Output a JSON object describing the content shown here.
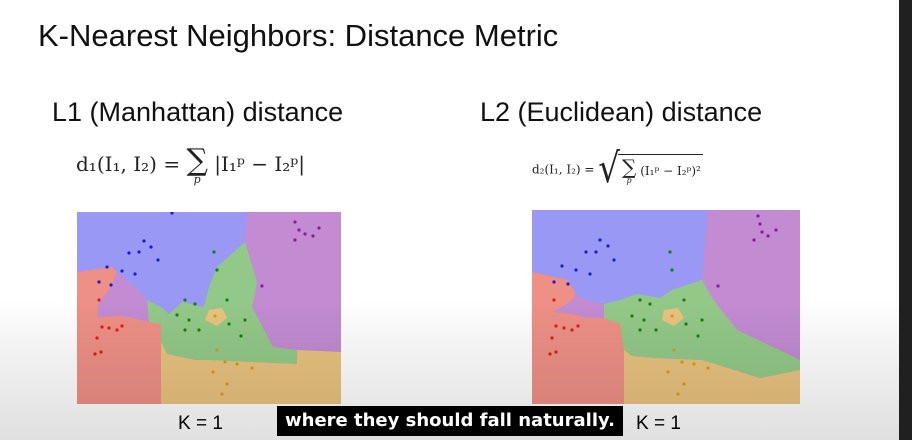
{
  "slide": {
    "title": "K-Nearest Neighbors: Distance Metric",
    "left": {
      "heading": "L1 (Manhattan) distance",
      "formula": {
        "lhs": "d₁(I₁, I₂) =",
        "sum_sub": "p",
        "body": "|I₁ᵖ − I₂ᵖ|"
      },
      "k_label": "K = 1"
    },
    "right": {
      "heading": "L2 (Euclidean) distance",
      "formula": {
        "lhs": "d₂(I₁, I₂) =",
        "sum_sub": "p",
        "body": "(I₁ᵖ − I₂ᵖ)²"
      },
      "k_label": "K = 1"
    }
  },
  "subtitle": "where they should fall naturally.",
  "colors": {
    "blue": "#9999f5",
    "purple": "#c28bd2",
    "red": "#ee9086",
    "green": "#93c988",
    "yellow": "#e9c37f",
    "dot_blue": "#1d1dc4",
    "dot_purple": "#8a1e9a",
    "dot_red": "#dc1c1c",
    "dot_green": "#138013",
    "dot_yellow": "#d69c1c"
  }
}
